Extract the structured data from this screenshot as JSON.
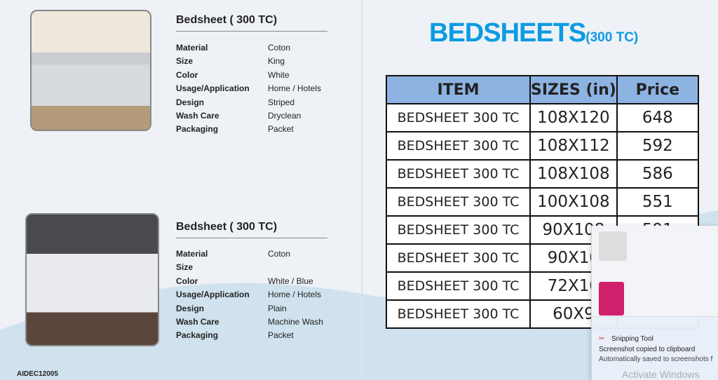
{
  "left_page": {
    "products": [
      {
        "title": "Bedsheet ( 300 TC)",
        "specs": [
          [
            "Material",
            "Coton"
          ],
          [
            "Size",
            "King"
          ],
          [
            "Color",
            "White"
          ],
          [
            "Usage/Application",
            "Home / Hotels"
          ],
          [
            "Design",
            "Striped"
          ],
          [
            "Wash Care",
            "Dryclean"
          ],
          [
            "Packaging",
            "Packet"
          ]
        ]
      },
      {
        "title": "Bedsheet ( 300 TC)",
        "specs": [
          [
            "Material",
            "Coton"
          ],
          [
            "Size",
            ""
          ],
          [
            "Color",
            "White / Blue"
          ],
          [
            "Usage/Application",
            "Home / Hotels"
          ],
          [
            "Design",
            "Plain"
          ],
          [
            "Wash Care",
            "Machine Wash"
          ],
          [
            "Packaging",
            "Packet"
          ]
        ]
      }
    ],
    "code": "AIDEC12005"
  },
  "right_page": {
    "brand": "BEDSHEETS",
    "brand_sub": "(300 TC)",
    "brand_color": "#0a9be3",
    "table": {
      "headers": [
        "ITEM",
        "SIZES (in)",
        "Price"
      ],
      "rows": [
        [
          "BEDSHEET 300 TC",
          "108X120",
          "648"
        ],
        [
          "BEDSHEET 300 TC",
          "108X112",
          "592"
        ],
        [
          "BEDSHEET 300 TC",
          "108X108",
          "586"
        ],
        [
          "BEDSHEET 300 TC",
          "100X108",
          "551"
        ],
        [
          "BEDSHEET 300 TC",
          "90X108",
          "591"
        ],
        [
          "BEDSHEET 300 TC",
          "90X10",
          ""
        ],
        [
          "BEDSHEET 300 TC",
          "72X10",
          ""
        ],
        [
          "BEDSHEET 300 TC",
          "60X9",
          ""
        ]
      ]
    }
  },
  "notification": {
    "app": "Snipping Tool",
    "title": "Screenshot copied to clipboard",
    "body": "Automatically saved to screenshots f"
  },
  "watermark": "Activate Windows"
}
